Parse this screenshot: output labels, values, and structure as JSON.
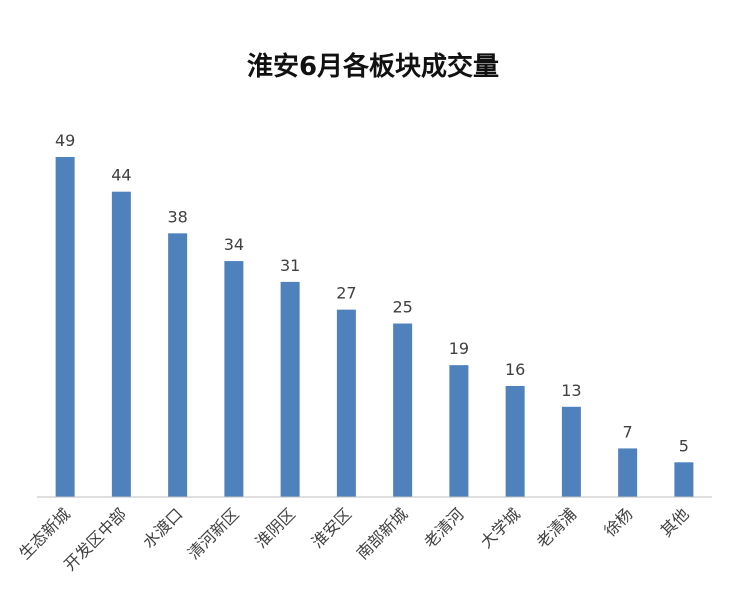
{
  "chart_data": {
    "type": "bar",
    "title": "淮安6月各板块成交量",
    "xlabel": "",
    "ylabel": "",
    "categories": [
      "生态新城",
      "开发区中部",
      "水渡口",
      "清河新区",
      "淮阴区",
      "淮安区",
      "南部新城",
      "老清河",
      "大学城",
      "老清浦",
      "徐杨",
      "其他"
    ],
    "values": [
      49,
      44,
      38,
      34,
      31,
      27,
      25,
      19,
      16,
      13,
      7,
      5
    ],
    "ylim": [
      0,
      49
    ],
    "grid": false,
    "legend": "none",
    "bar_color": "#4f81bd",
    "axis_color": "#bfbfbf"
  }
}
